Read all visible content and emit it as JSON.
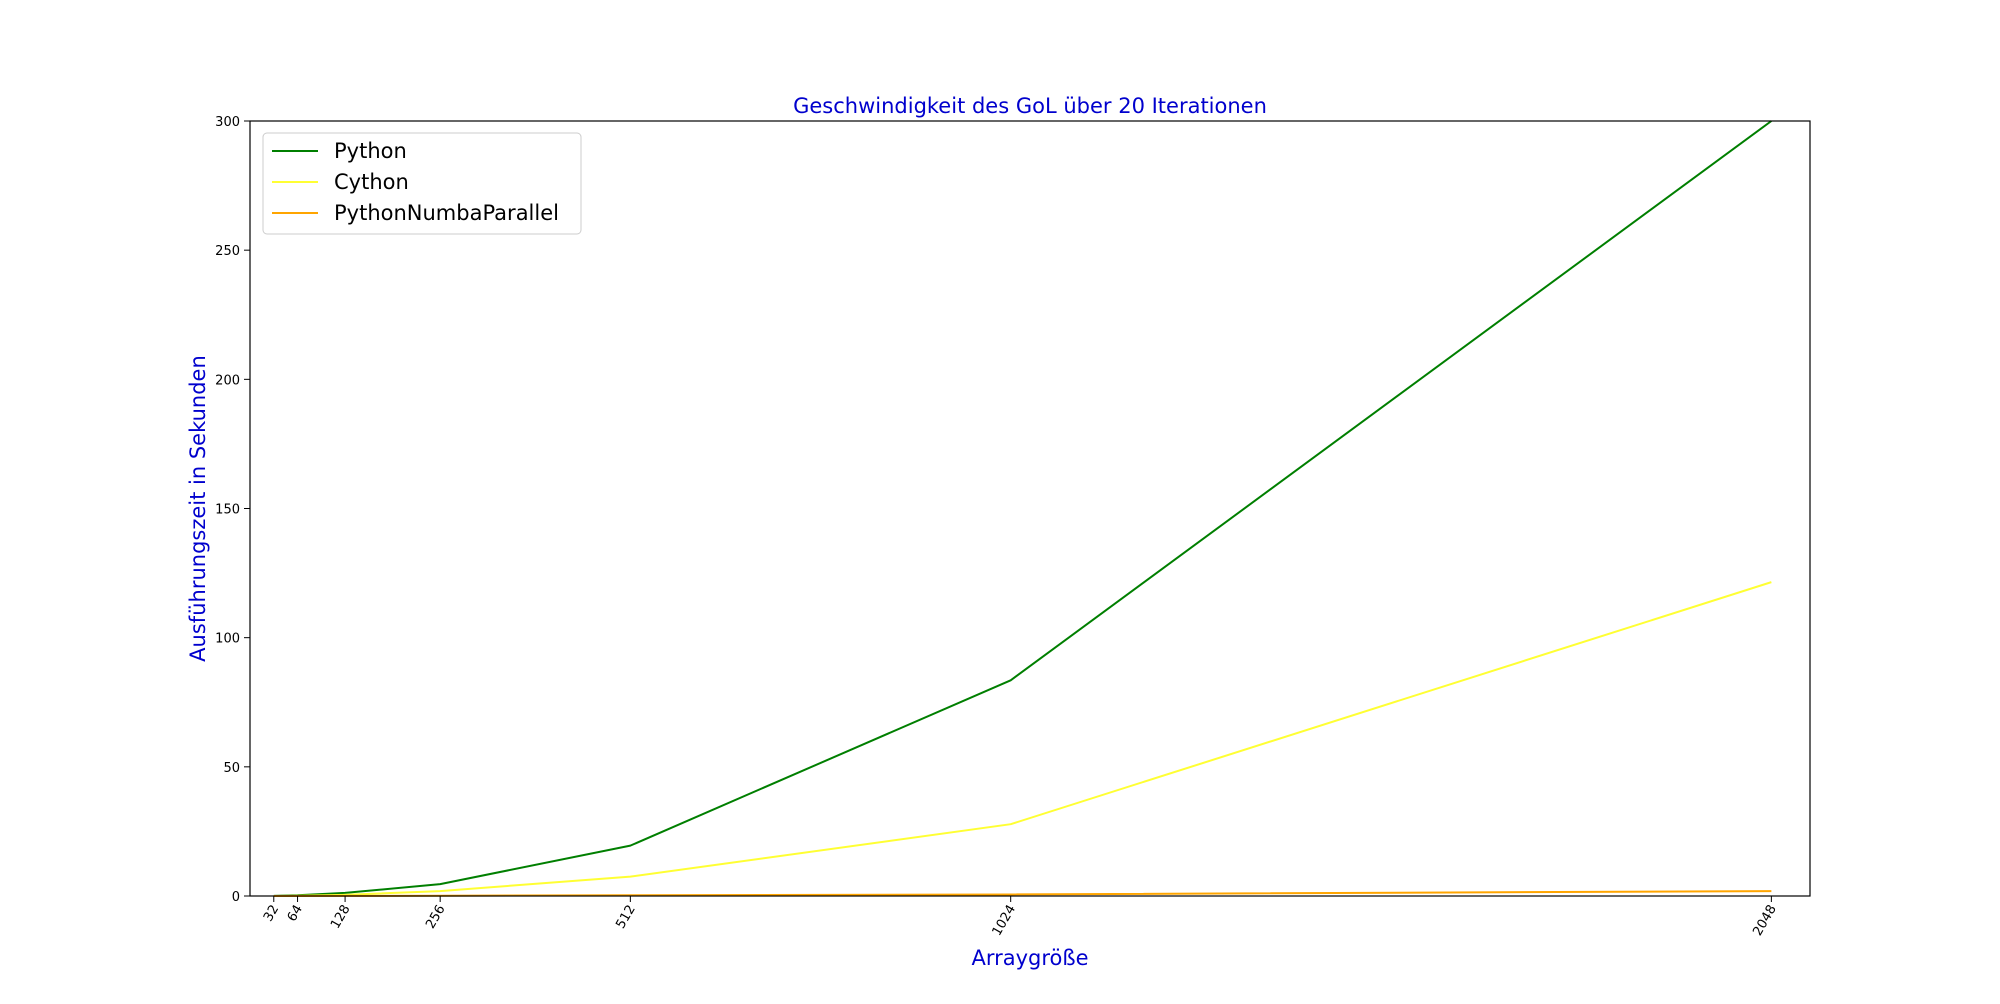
{
  "chart_data": {
    "type": "line",
    "title": "Geschwindigkeit des GoL über 20 Iterationen",
    "xlabel": "Arraygröße",
    "ylabel": "Ausführungszeit in Sekunden",
    "x": [
      32,
      64,
      128,
      256,
      512,
      1024,
      2048
    ],
    "x_tick_labels": [
      "32",
      "64",
      "128",
      "256",
      "512",
      "1024",
      "2048"
    ],
    "y_ticks": [
      0,
      50,
      100,
      150,
      200,
      250,
      300
    ],
    "y_tick_labels": [
      "0",
      "50",
      "100",
      "150",
      "200",
      "250",
      "300"
    ],
    "xlim": [
      0,
      2100
    ],
    "ylim": [
      0,
      300
    ],
    "grid": false,
    "legend_position": "top-left",
    "series": [
      {
        "name": "Python",
        "color": "#007f00",
        "values": [
          0.07,
          0.3,
          1.2,
          4.6,
          19.5,
          83.5,
          300
        ]
      },
      {
        "name": "Cython",
        "color": "#ffff33",
        "values": [
          0.02,
          0.08,
          0.45,
          1.9,
          7.5,
          27.8,
          121.5
        ]
      },
      {
        "name": "PythonNumbaParallel",
        "color": "#ffa500",
        "values": [
          0.01,
          0.02,
          0.04,
          0.1,
          0.3,
          0.6,
          1.9
        ]
      }
    ],
    "colors": {
      "title": "#0000cd",
      "axis_label": "#0000cd",
      "axis": "#000000"
    }
  }
}
